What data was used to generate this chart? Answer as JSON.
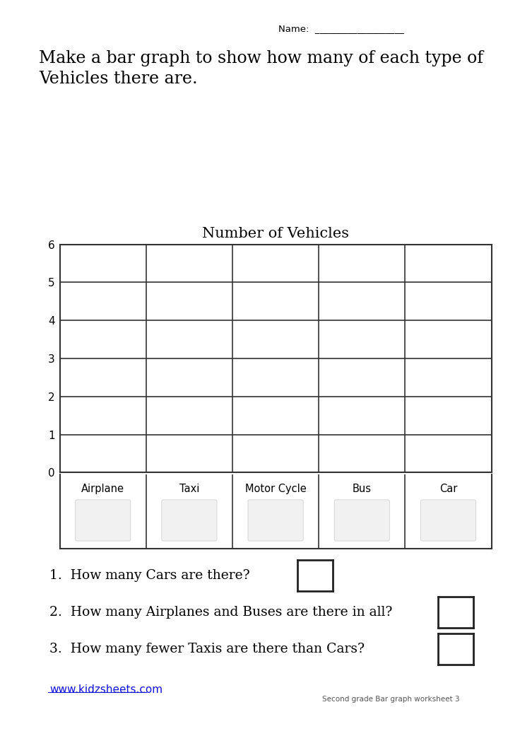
{
  "title": "Number of Vehicles",
  "categories": [
    "Airplane",
    "Taxi",
    "Motor Cycle",
    "Bus",
    "Car"
  ],
  "yticks": [
    0,
    1,
    2,
    3,
    4,
    5,
    6
  ],
  "ylim": [
    0,
    6
  ],
  "name_label": "Name:  ___________________",
  "instruction_line1": "Make a bar graph to show how many of each type of",
  "instruction_line2": "Vehicles there are.",
  "questions": [
    "1.  How many Cars are there?",
    "2.  How many Airplanes and Buses are there in all?",
    "3.  How many fewer Taxis are there than Cars?"
  ],
  "website": "www.kidzsheets.com",
  "footer": "Second grade Bar graph worksheet 3",
  "bg_color": "#ffffff",
  "grid_color": "#333333",
  "text_color": "#000000",
  "title_fontsize": 15,
  "label_fontsize": 10.5,
  "instruction_fontsize": 17,
  "question_fontsize": 13.5,
  "website_color": "#1111dd"
}
